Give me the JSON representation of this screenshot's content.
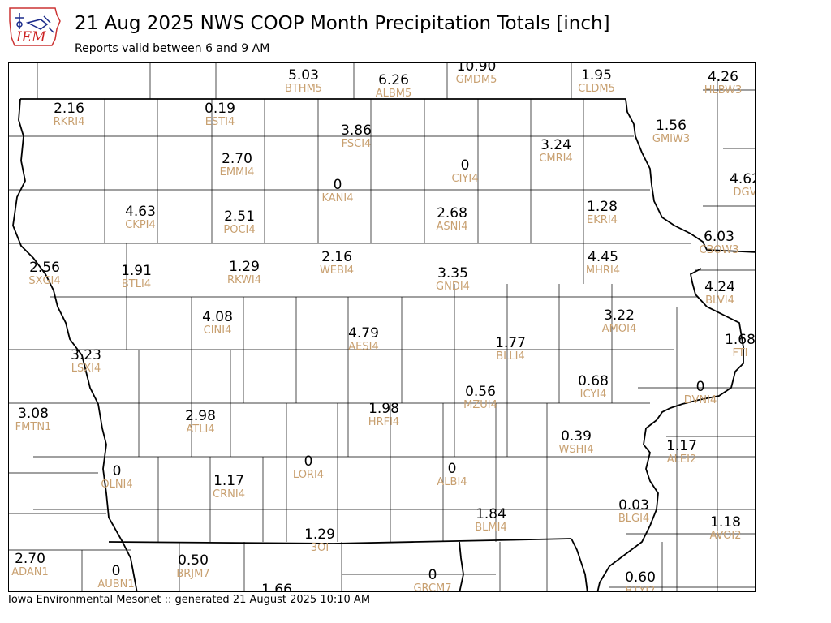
{
  "header": {
    "logo_text": "IEM",
    "title": "21 Aug 2025 NWS COOP Month Precipitation Totals [inch]",
    "subtitle": "Reports valid between 6 and 9 AM"
  },
  "footer": "Iowa Environmental Mesonet :: generated 21 August 2025 10:10 AM",
  "colors": {
    "value": "#000000",
    "station_id": "#c8a070",
    "lines": "#000000"
  },
  "stations": [
    {
      "id": "BTHM5",
      "value": "5.03"
    },
    {
      "id": "ALBM5",
      "value": "6.26"
    },
    {
      "id": "GMDM5",
      "value": "10.90"
    },
    {
      "id": "CLDM5",
      "value": "1.95"
    },
    {
      "id": "HLBW3",
      "value": "4.26"
    },
    {
      "id": "RKRI4",
      "value": "2.16"
    },
    {
      "id": "ESTI4",
      "value": "0.19"
    },
    {
      "id": "FSCI4",
      "value": "3.86"
    },
    {
      "id": "GMIW3",
      "value": "1.56"
    },
    {
      "id": "CMRI4",
      "value": "3.24"
    },
    {
      "id": "EMMI4",
      "value": "2.70"
    },
    {
      "id": "CIYI4",
      "value": "0"
    },
    {
      "id": "DGV",
      "value": "4.62"
    },
    {
      "id": "KANI4",
      "value": "0"
    },
    {
      "id": "EKRI4",
      "value": "1.28"
    },
    {
      "id": "CKPI4",
      "value": "4.63"
    },
    {
      "id": "POCI4",
      "value": "2.51"
    },
    {
      "id": "ASNI4",
      "value": "2.68"
    },
    {
      "id": "CBOW3",
      "value": "6.03"
    },
    {
      "id": "SXGI4",
      "value": "2.56"
    },
    {
      "id": "BTLI4",
      "value": "1.91"
    },
    {
      "id": "RKWI4",
      "value": "1.29"
    },
    {
      "id": "WEBI4",
      "value": "2.16"
    },
    {
      "id": "GNDI4",
      "value": "3.35"
    },
    {
      "id": "MHRI4",
      "value": "4.45"
    },
    {
      "id": "BLVI4",
      "value": "4.24"
    },
    {
      "id": "CINI4",
      "value": "4.08"
    },
    {
      "id": "AMOI4",
      "value": "3.22"
    },
    {
      "id": "AESI4",
      "value": "4.79"
    },
    {
      "id": "BLLI4",
      "value": "1.77"
    },
    {
      "id": "FTI",
      "value": "1.68"
    },
    {
      "id": "LSXI4",
      "value": "3.23"
    },
    {
      "id": "ICYI4",
      "value": "0.68"
    },
    {
      "id": "DVNI4",
      "value": "0"
    },
    {
      "id": "MZUI4",
      "value": "0.56"
    },
    {
      "id": "FMTN1",
      "value": "3.08"
    },
    {
      "id": "ATLI4",
      "value": "2.98"
    },
    {
      "id": "HRFI4",
      "value": "1.98"
    },
    {
      "id": "WSHI4",
      "value": "0.39"
    },
    {
      "id": "ALEI2",
      "value": "1.17"
    },
    {
      "id": "OLNI4",
      "value": "0"
    },
    {
      "id": "LORI4",
      "value": "0"
    },
    {
      "id": "ALBI4",
      "value": "0"
    },
    {
      "id": "CRNI4",
      "value": "1.17"
    },
    {
      "id": "BLMI4",
      "value": "1.84"
    },
    {
      "id": "BLGI4",
      "value": "0.03"
    },
    {
      "id": "AVOI2",
      "value": "1.18"
    },
    {
      "id": "3OI",
      "value": "1.29"
    },
    {
      "id": "ADAN1",
      "value": "2.70"
    },
    {
      "id": "AUBN1",
      "value": "0"
    },
    {
      "id": "BRJM7",
      "value": "0.50"
    },
    {
      "id": "GRCM7",
      "value": "0"
    },
    {
      "id": "BTYI2",
      "value": "0.60"
    },
    {
      "id": "",
      "value": "1.66"
    }
  ]
}
